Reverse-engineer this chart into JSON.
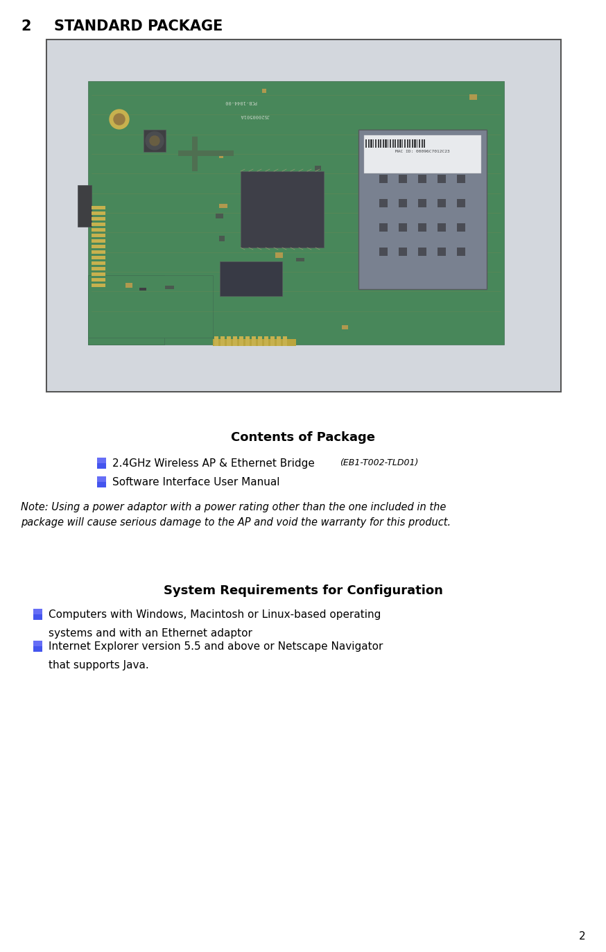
{
  "page_number": "2",
  "heading_number": "2",
  "heading_text": "STANDARD PACKAGE",
  "heading_fontsize": 15,
  "contents_heading": "Contents of Package",
  "contents_heading_fontsize": 13,
  "item1_normal": "2.4GHz Wireless AP & Ethernet Bridge ",
  "item1_italic": "(EB1-T002-TLD01)",
  "item2": "Software Interface User Manual",
  "note_line1": "Note: Using a power adaptor with a power rating other than the one included in the",
  "note_line2": "package will cause serious damage to the AP and void the warranty for this product.",
  "sysreq_heading": "System Requirements for Configuration",
  "sysreq_heading_fontsize": 13,
  "sysreq_item1_line1": "Computers with Windows, Macintosh or Linux-based operating",
  "sysreq_item1_line2": "systems and with an Ethernet adaptor",
  "sysreq_item2_line1": "Internet Explorer version 5.5 and above or Netscape Navigator",
  "sysreq_item2_line2": "that supports Java.",
  "bullet_color": "#4455ee",
  "text_color": "#000000",
  "background_color": "#ffffff",
  "body_fontsize": 11,
  "note_fontsize": 10.5,
  "pcb_green": "#2d7a2d",
  "pcb_dark_green": "#1a5c1a",
  "pcb_light_green": "#3a9a3a",
  "pcb_bg": "#c8d8c0",
  "box_border": "#555555",
  "image_margin_white": "#eef0ee"
}
